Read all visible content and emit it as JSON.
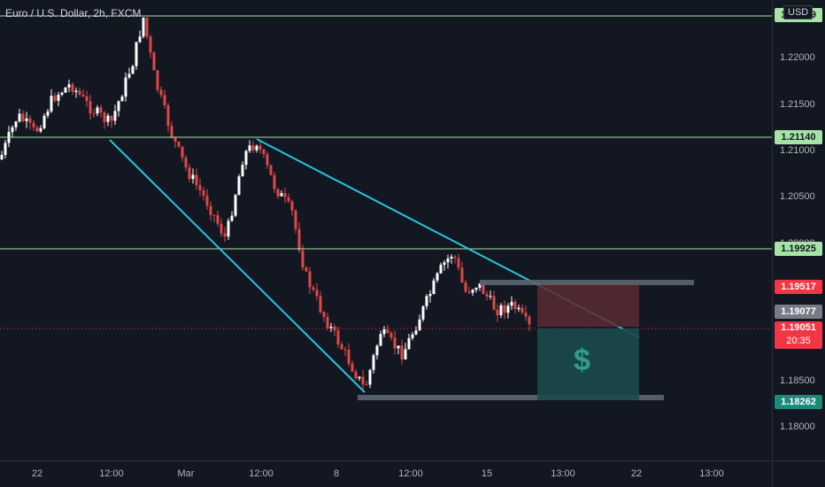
{
  "title": "Euro / U.S. Dollar, 2h, FXCM",
  "currency": "USD",
  "dollar_icon": "$",
  "price_ticks": [
    "1.22000",
    "1.21500",
    "1.21000",
    "1.20500",
    "1.20000",
    "1.18500",
    "1.18000"
  ],
  "price_labels": {
    "top_level": "1.22329",
    "level_1": "1.21140",
    "level_2": "1.19925",
    "stop": "1.19517",
    "entry": "1.19077",
    "current": "1.19051",
    "countdown": "20:35",
    "target": "1.18262"
  },
  "time_ticks": [
    "22",
    "12:00",
    "Mar",
    "12:00",
    "8",
    "12:00",
    "15",
    "13:00",
    "22",
    "13:00"
  ],
  "colors": {
    "background": "#131722",
    "up_candle": "#ffffff",
    "down_candle": "#e04848",
    "horizontal_line": "#a6e3a6",
    "trendline": "#26c6da",
    "stop_zone": "#5b2a33",
    "target_zone": "#1b4a4a",
    "current_price": "#f23645"
  }
}
